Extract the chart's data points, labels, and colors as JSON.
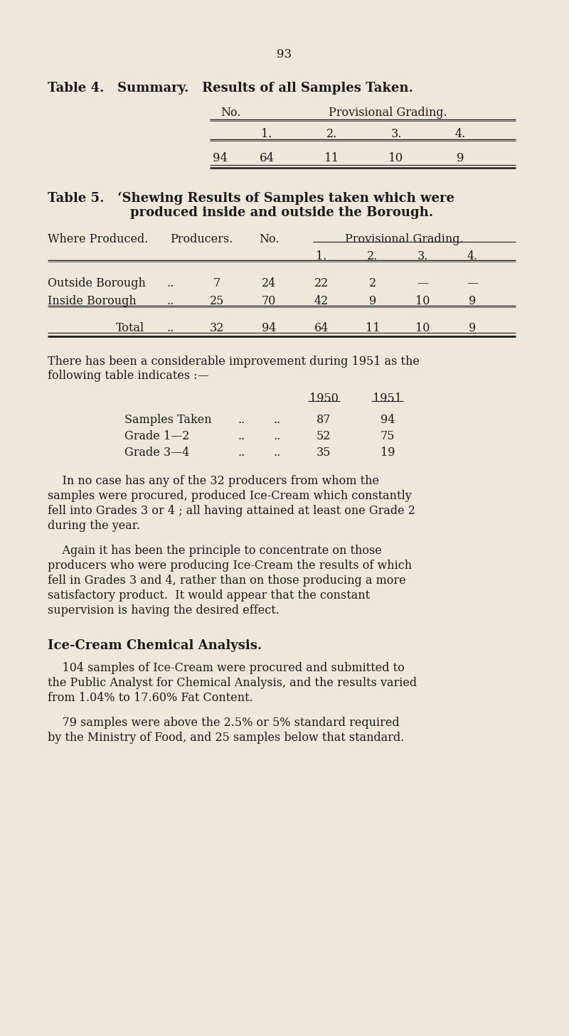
{
  "bg_color": "#ede8da",
  "text_color": "#1a1a1a",
  "page_number": "93",
  "table4_title": "Table 4.   Summary.   Results of all Samples Taken.",
  "table4_no": "No.",
  "table4_prov": "Provisional Grading.",
  "table4_subheader": [
    "1.",
    "2.",
    "3.",
    "4."
  ],
  "table4_data": [
    "94",
    "64",
    "11",
    "10",
    "9"
  ],
  "table5_title1": "Table 5.   ‘Shewing Results of Samples taken which were",
  "table5_title2": "produced inside and outside the Borough.",
  "t5_col1": "Where Produced.",
  "t5_col2": "Producers.",
  "t5_col3": "No.",
  "t5_prov": "Provisional Grading.",
  "t5_sub": [
    "1.",
    "2.",
    "3.",
    "4."
  ],
  "t5_row1": [
    "Outside Borough",
    "..",
    "7",
    "24",
    "22",
    "2",
    "—",
    "—"
  ],
  "t5_row2": [
    "Inside Borough",
    "..",
    "25",
    "70",
    "42",
    "9",
    "10",
    "9"
  ],
  "t5_total": [
    "Total",
    "..",
    "32",
    "94",
    "64",
    "11",
    "10",
    "9"
  ],
  "para1a": "There has been a considerable improvement during 1951 as the",
  "para1b": "following table indicates :—",
  "cmp_hdr": [
    "1950",
    "1951"
  ],
  "cmp_rows": [
    [
      "Samples Taken",
      "..",
      "..",
      "87",
      "94"
    ],
    [
      "Grade 1—2",
      "..",
      "..",
      "52",
      "75"
    ],
    [
      "Grade 3—4",
      "..",
      "..",
      "35",
      "19"
    ]
  ],
  "para2_lines": [
    "    In no case has any of the 32 producers from whom the",
    "samples were procured, produced Ice-Cream which constantly",
    "fell into Grades 3 or 4 ; all having attained at least one Grade 2",
    "during the year."
  ],
  "para3_lines": [
    "    Again it has been the principle to concentrate on those",
    "producers who were producing Ice-Cream the results of which",
    "fell in Grades 3 and 4, rather than on those producing a more",
    "satisfactory product.  It would appear that the constant",
    "supervision is having the desired effect."
  ],
  "section_hdr": "Ice-Cream Chemical Analysis.",
  "para4_lines": [
    "    104 samples of Ice-Cream were procured and submitted to",
    "the Public Analyst for Chemical Analysis, and the results varied",
    "from 1.04% to 17.60% Fat Content."
  ],
  "para5_lines": [
    "    79 samples were above the 2.5% or 5% standard required",
    "by the Ministry of Food, and 25 samples below that standard."
  ]
}
